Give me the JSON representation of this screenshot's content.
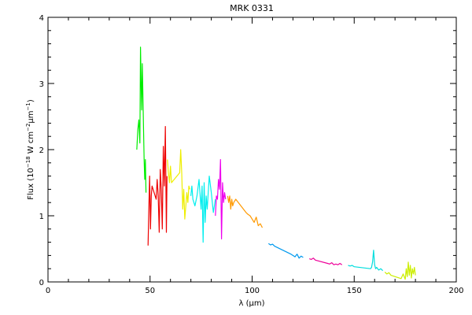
{
  "chart_data": {
    "type": "line",
    "title": "MRK 0331",
    "xlabel": "λ (μm)",
    "ylabel": {
      "prefix": "Flux (10",
      "exp1": "−18",
      "mid": " W cm",
      "exp2": "−2",
      "mid2": "μm",
      "exp3": "−1",
      "suffix": ")"
    },
    "xlim": [
      0,
      200
    ],
    "ylim": [
      0,
      4
    ],
    "x_ticks": [
      0,
      50,
      100,
      150,
      200
    ],
    "x_tick_labels": [
      "0",
      "50",
      "100",
      "150",
      "200"
    ],
    "y_ticks": [
      0,
      1,
      2,
      3,
      4
    ],
    "y_tick_labels": [
      "0",
      "1",
      "2",
      "3",
      "4"
    ],
    "grid": false,
    "legend": "none",
    "series": [
      {
        "color": "#00ee00",
        "x": [
          43.5,
          44.0,
          44.5,
          45.0,
          45.3,
          45.6,
          45.9,
          46.2,
          46.5,
          46.8,
          47.1,
          47.4,
          47.7,
          48.0
        ],
        "y": [
          2.0,
          2.3,
          2.45,
          2.1,
          3.55,
          3.05,
          2.6,
          3.3,
          2.8,
          2.35,
          1.85,
          1.55,
          1.85,
          1.35
        ]
      },
      {
        "color": "#ee0000",
        "x": [
          49.0,
          49.4,
          49.8,
          50.2,
          50.6,
          51.0,
          53.0,
          53.5,
          54.0,
          54.5,
          55.0,
          55.5,
          56.0,
          56.5,
          57.0,
          57.5,
          58.0,
          58.3
        ],
        "y": [
          0.55,
          1.1,
          1.6,
          0.8,
          1.3,
          1.45,
          1.25,
          1.55,
          1.3,
          0.75,
          1.7,
          1.4,
          0.8,
          2.05,
          1.45,
          2.35,
          0.75,
          1.6
        ]
      },
      {
        "color": "#eeee00",
        "x": [
          58.5,
          59.0,
          59.5,
          60.0,
          60.5,
          64.5,
          65.0,
          65.5,
          66.0,
          66.5,
          67.0,
          67.5,
          68.0,
          68.5,
          69.0,
          69.5
        ],
        "y": [
          1.85,
          1.65,
          1.5,
          1.75,
          1.5,
          1.65,
          2.0,
          1.65,
          1.1,
          1.4,
          0.95,
          1.15,
          1.35,
          1.2,
          1.45,
          1.4
        ]
      },
      {
        "color": "#00eeee",
        "x": [
          70.0,
          70.5,
          71.0,
          72.0,
          73.0,
          74.0,
          75.0,
          75.5,
          76.0,
          76.5,
          77.0,
          77.5,
          78.0,
          79.0,
          80.0,
          81.0,
          82.0
        ],
        "y": [
          1.3,
          1.45,
          1.25,
          1.15,
          1.3,
          1.55,
          1.1,
          1.45,
          0.6,
          1.5,
          0.9,
          1.3,
          1.1,
          1.6,
          1.35,
          1.05,
          1.25
        ]
      },
      {
        "color": "#ee00ee",
        "x": [
          82.0,
          82.5,
          83.0,
          83.5,
          84.0,
          84.5,
          85.0,
          85.5,
          86.0,
          86.5,
          87.0
        ],
        "y": [
          1.0,
          1.3,
          1.25,
          1.55,
          1.4,
          1.85,
          0.65,
          1.5,
          1.2,
          1.35,
          1.25
        ]
      },
      {
        "color": "#ff9900",
        "x": [
          88.0,
          88.5,
          89.0,
          89.5,
          90.0,
          90.5,
          91.0,
          92.0,
          97.0,
          98.0,
          99.0,
          100.0,
          101.0,
          102.0,
          103.0,
          104.0,
          105.0
        ],
        "y": [
          1.3,
          1.2,
          1.3,
          1.1,
          1.25,
          1.15,
          1.2,
          1.25,
          1.05,
          1.02,
          1.0,
          0.95,
          0.9,
          0.98,
          0.85,
          0.88,
          0.82
        ]
      },
      {
        "color": "#0099ee",
        "x": [
          108.0,
          109.0,
          110.0,
          111.0,
          119.0,
          120.0,
          121.0,
          122.0,
          123.0,
          124.0,
          125.0
        ],
        "y": [
          0.58,
          0.56,
          0.57,
          0.54,
          0.42,
          0.4,
          0.38,
          0.42,
          0.36,
          0.39,
          0.37
        ]
      },
      {
        "color": "#ee0099",
        "x": [
          128.0,
          129.0,
          130.0,
          131.0,
          137.0,
          138.0,
          139.0,
          140.0,
          141.0,
          142.0,
          143.0,
          144.0
        ],
        "y": [
          0.35,
          0.34,
          0.36,
          0.33,
          0.28,
          0.27,
          0.29,
          0.26,
          0.27,
          0.26,
          0.28,
          0.26
        ]
      },
      {
        "color": "#00dddd",
        "x": [
          147.0,
          148.0,
          149.0,
          150.0,
          158.0,
          158.5,
          159.0,
          159.5,
          160.0,
          160.5,
          161.0,
          162.0,
          163.0,
          164.0
        ],
        "y": [
          0.25,
          0.24,
          0.25,
          0.23,
          0.2,
          0.22,
          0.3,
          0.48,
          0.26,
          0.2,
          0.22,
          0.18,
          0.2,
          0.17
        ]
      },
      {
        "color": "#ccee00",
        "x": [
          165.0,
          166.0,
          167.0,
          168.0,
          173.0,
          174.0,
          175.0,
          175.5,
          176.0,
          176.5,
          177.0,
          177.5,
          178.0,
          178.5,
          179.0,
          179.5,
          180.0
        ],
        "y": [
          0.15,
          0.12,
          0.14,
          0.1,
          0.05,
          0.12,
          0.04,
          0.2,
          0.08,
          0.3,
          0.1,
          0.25,
          0.06,
          0.2,
          0.12,
          0.22,
          0.1
        ]
      }
    ]
  }
}
